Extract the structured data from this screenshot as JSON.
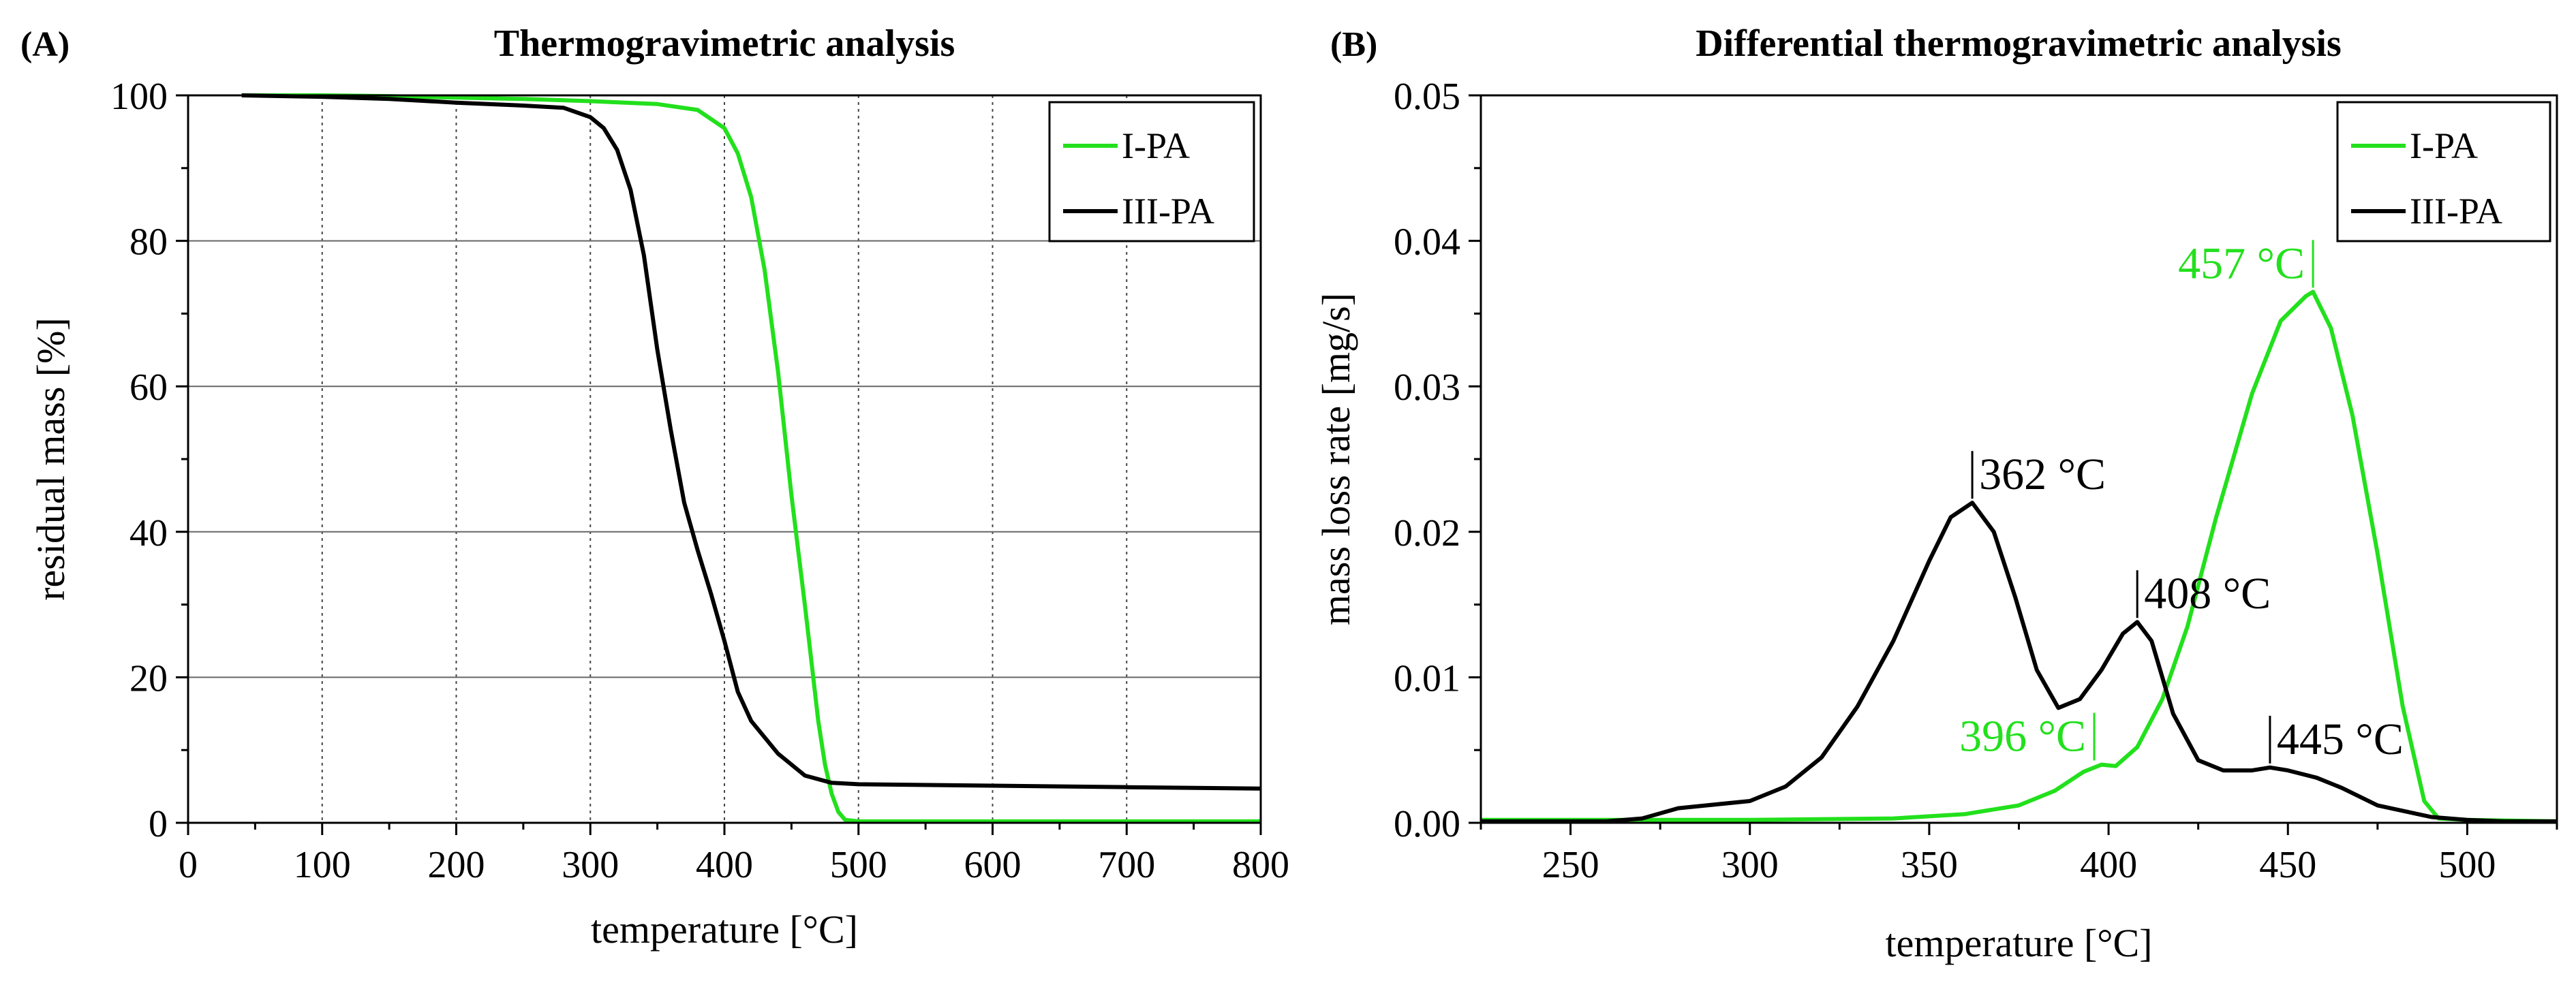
{
  "chart_data": [
    {
      "panel": "(A)",
      "type": "line",
      "title": "Thermogravimetric analysis",
      "xlabel": "temperature [°C]",
      "ylabel": "residual mass [%]",
      "xlim": [
        0,
        800
      ],
      "ylim": [
        0,
        100
      ],
      "xticks": [
        0,
        100,
        200,
        300,
        400,
        500,
        600,
        700,
        800
      ],
      "yticks": [
        0,
        20,
        40,
        60,
        80,
        100
      ],
      "grid": {
        "x": "dotted",
        "y": "solid"
      },
      "legend_position": "top-right",
      "series": [
        {
          "name": "I-PA",
          "color": "#22e01c",
          "x": [
            40,
            100,
            150,
            200,
            250,
            300,
            350,
            380,
            400,
            410,
            420,
            430,
            440,
            450,
            460,
            465,
            470,
            475,
            480,
            485,
            490,
            500,
            600,
            700,
            800
          ],
          "y": [
            100,
            100,
            99.9,
            99.7,
            99.5,
            99.2,
            98.8,
            98,
            95.5,
            92,
            86,
            76,
            62,
            45,
            30,
            22,
            14,
            8,
            4,
            1.5,
            0.4,
            0.2,
            0.2,
            0.2,
            0.2
          ]
        },
        {
          "name": "III-PA",
          "color": "#000000",
          "x": [
            40,
            100,
            150,
            200,
            250,
            280,
            300,
            310,
            320,
            330,
            340,
            350,
            360,
            370,
            380,
            390,
            400,
            410,
            420,
            440,
            460,
            480,
            500,
            600,
            700,
            800
          ],
          "y": [
            100,
            99.8,
            99.5,
            99.0,
            98.6,
            98.3,
            97.0,
            95.5,
            92.5,
            87.0,
            78.0,
            65.0,
            54.0,
            44.0,
            37.5,
            31.5,
            25.0,
            18.0,
            14.0,
            9.5,
            6.5,
            5.5,
            5.3,
            5.1,
            4.9,
            4.7
          ]
        }
      ]
    },
    {
      "panel": "(B)",
      "type": "line",
      "title": "Differential thermogravimetric analysis",
      "xlabel": "temperature [°C]",
      "ylabel": "mass loss rate [mg/s]",
      "xlim": [
        225,
        525
      ],
      "ylim": [
        0,
        0.05
      ],
      "xticks": [
        250,
        300,
        350,
        400,
        450,
        500
      ],
      "ytick_labels": [
        "0.00",
        "0.01",
        "0.02",
        "0.03",
        "0.04",
        "0.05"
      ],
      "grid": "off",
      "legend_position": "top-right",
      "series": [
        {
          "name": "I-PA",
          "color": "#22e01c",
          "x": [
            225,
            300,
            340,
            360,
            375,
            385,
            393,
            398,
            402,
            408,
            415,
            422,
            430,
            440,
            448,
            455,
            457,
            462,
            468,
            475,
            482,
            488,
            492,
            500,
            525
          ],
          "y": [
            0.0002,
            0.0002,
            0.0003,
            0.0006,
            0.0012,
            0.0022,
            0.0035,
            0.004,
            0.0039,
            0.0052,
            0.0085,
            0.0135,
            0.021,
            0.0295,
            0.0345,
            0.0362,
            0.0365,
            0.034,
            0.028,
            0.0185,
            0.008,
            0.0015,
            0.0003,
            0.0002,
            0.0001
          ]
        },
        {
          "name": "III-PA",
          "color": "#000000",
          "x": [
            225,
            260,
            270,
            280,
            300,
            310,
            320,
            330,
            340,
            350,
            356,
            362,
            368,
            374,
            380,
            386,
            392,
            398,
            404,
            408,
            412,
            418,
            425,
            432,
            440,
            445,
            450,
            458,
            465,
            475,
            490,
            500,
            510,
            525
          ],
          "y": [
            0.0001,
            0.0001,
            0.0003,
            0.001,
            0.0015,
            0.0025,
            0.0045,
            0.008,
            0.0125,
            0.018,
            0.021,
            0.022,
            0.02,
            0.0155,
            0.0105,
            0.0079,
            0.0085,
            0.0105,
            0.013,
            0.0138,
            0.0125,
            0.0075,
            0.0043,
            0.0036,
            0.0036,
            0.0038,
            0.0036,
            0.0031,
            0.0024,
            0.0012,
            0.0004,
            0.0002,
            0.0001,
            0.0001
          ]
        }
      ],
      "annotations": [
        {
          "text": "457 °C",
          "x": 457,
          "y": 0.0365,
          "color": "#22e01c",
          "side": "left"
        },
        {
          "text": "362 °C",
          "x": 362,
          "y": 0.022,
          "color": "#000000",
          "side": "right"
        },
        {
          "text": "408 °C",
          "x": 408,
          "y": 0.0138,
          "color": "#000000",
          "side": "right"
        },
        {
          "text": "396 °C",
          "x": 396,
          "y": 0.004,
          "color": "#22e01c",
          "side": "left"
        },
        {
          "text": "445 °C",
          "x": 445,
          "y": 0.0038,
          "color": "#000000",
          "side": "right"
        }
      ]
    }
  ]
}
